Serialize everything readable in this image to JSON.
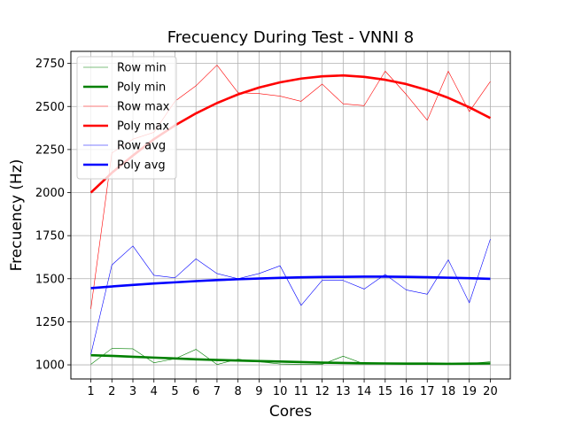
{
  "chart_data": {
    "type": "line",
    "title": "Frecuency During Test - VNNI 8",
    "xlabel": "Cores",
    "ylabel": "Frecuency (Hz)",
    "x": [
      1,
      2,
      3,
      4,
      5,
      6,
      7,
      8,
      9,
      10,
      11,
      12,
      13,
      14,
      15,
      16,
      17,
      18,
      19,
      20
    ],
    "xlim": [
      0.05,
      20.95
    ],
    "ylim": [
      918,
      2820
    ],
    "yticks": [
      1000,
      1250,
      1500,
      1750,
      2000,
      2250,
      2500,
      2750
    ],
    "grid": true,
    "legend_position": "top-left",
    "series": [
      {
        "name": "Row min",
        "color": "#008000",
        "width": "thin",
        "values": [
          1003,
          1095,
          1093,
          1012,
          1035,
          1090,
          1002,
          1033,
          1018,
          1005,
          1003,
          1003,
          1050,
          1005,
          1008,
          1005,
          1008,
          1005,
          1008,
          1018
        ]
      },
      {
        "name": "Poly min",
        "color": "#008000",
        "width": "thick",
        "values": [
          1056,
          1052,
          1047,
          1042,
          1037,
          1032,
          1028,
          1025,
          1022,
          1019,
          1016,
          1013,
          1011,
          1009,
          1008,
          1007,
          1007,
          1006,
          1007,
          1008
        ]
      },
      {
        "name": "Row max",
        "color": "#ff0000",
        "width": "thin",
        "values": [
          1325,
          2230,
          2310,
          2350,
          2530,
          2620,
          2740,
          2580,
          2575,
          2560,
          2530,
          2630,
          2515,
          2505,
          2705,
          2570,
          2420,
          2705,
          2470,
          2645
        ]
      },
      {
        "name": "Poly max",
        "color": "#ff0000",
        "width": "thick",
        "values": [
          2000,
          2115,
          2215,
          2310,
          2390,
          2460,
          2520,
          2570,
          2610,
          2640,
          2662,
          2675,
          2680,
          2672,
          2655,
          2630,
          2595,
          2550,
          2495,
          2433
        ]
      },
      {
        "name": "Row avg",
        "color": "#0000ff",
        "width": "thin",
        "values": [
          1060,
          1580,
          1690,
          1520,
          1505,
          1615,
          1530,
          1500,
          1530,
          1575,
          1345,
          1490,
          1490,
          1440,
          1525,
          1435,
          1410,
          1610,
          1360,
          1730
        ]
      },
      {
        "name": "Poly avg",
        "color": "#0000ff",
        "width": "thick",
        "values": [
          1445,
          1455,
          1464,
          1472,
          1479,
          1486,
          1492,
          1497,
          1501,
          1505,
          1508,
          1510,
          1511,
          1512,
          1512,
          1511,
          1509,
          1506,
          1503,
          1499
        ]
      }
    ]
  }
}
